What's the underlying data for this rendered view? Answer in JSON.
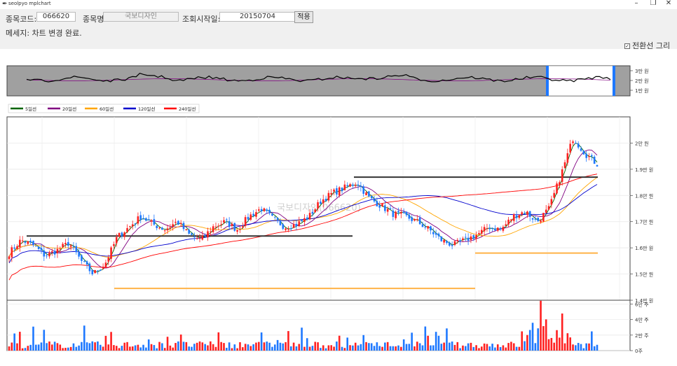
{
  "window": {
    "title": "seolpyo mplchart",
    "minimize": "–",
    "maximize": "❐",
    "close": "✕"
  },
  "form": {
    "code_label": "종목코드:",
    "code_value": "066620",
    "name_label": "종목명:",
    "name_value": "국보디자인",
    "start_label": "조회시작일:",
    "start_value": "20150704",
    "apply_label": "적용"
  },
  "message": "메세지: 차트 변경 완료.",
  "checkbox": {
    "label": "전환선 그리기",
    "checked": true,
    "mark": "✓"
  },
  "watermark": "국보디자인(066620)",
  "legend": [
    {
      "label": "5일선",
      "color": "#006400"
    },
    {
      "label": "20일선",
      "color": "#800080"
    },
    {
      "label": "60일선",
      "color": "#ffa500"
    },
    {
      "label": "120일선",
      "color": "#0000cd"
    },
    {
      "label": "240일선",
      "color": "#ff0000"
    }
  ],
  "colors": {
    "up": "#ff2020",
    "down": "#1e78ff",
    "slider_bg": "#a0a0a0",
    "slider_window": "#ffffff",
    "slider_handle": "#1e78ff",
    "ref_line_dark": "#333333",
    "ref_line_orange": "#ffb347"
  },
  "chart_data": {
    "type": "candlestick",
    "price_axis": {
      "ticks": [
        "2만 원",
        "1.9만 원",
        "1.8만 원",
        "1.7만 원",
        "1.6만 원",
        "1.5만 원",
        "1.4만 원"
      ],
      "ylim": [
        14000,
        21000
      ]
    },
    "volume_axis": {
      "ticks": [
        "6만 주",
        "4만 주",
        "2만 주",
        "0주"
      ],
      "ylim": [
        0,
        65000
      ]
    },
    "overview_axis": {
      "ticks": [
        "3만 원",
        "2만 원",
        "1만 원"
      ]
    },
    "approx_close_path": [
      15800,
      16300,
      16100,
      15700,
      15900,
      16200,
      15500,
      15000,
      15400,
      16400,
      16800,
      17200,
      16900,
      16700,
      17000,
      16500,
      16300,
      16800,
      17000,
      16700,
      17200,
      17500,
      17100,
      16800,
      16900,
      17200,
      17800,
      18100,
      18300,
      18500,
      17900,
      17600,
      17300,
      17200,
      17000,
      16700,
      16300,
      16100,
      16300,
      16500,
      16800,
      16700,
      17200,
      17400,
      17000,
      17500,
      18800,
      20200,
      19600,
      19200
    ],
    "horizontal_lines": [
      {
        "level": 16450,
        "color": "dark"
      },
      {
        "level": 14450,
        "color": "orange"
      },
      {
        "level": 18700,
        "color": "dark"
      },
      {
        "level": 15800,
        "color": "orange"
      }
    ]
  }
}
